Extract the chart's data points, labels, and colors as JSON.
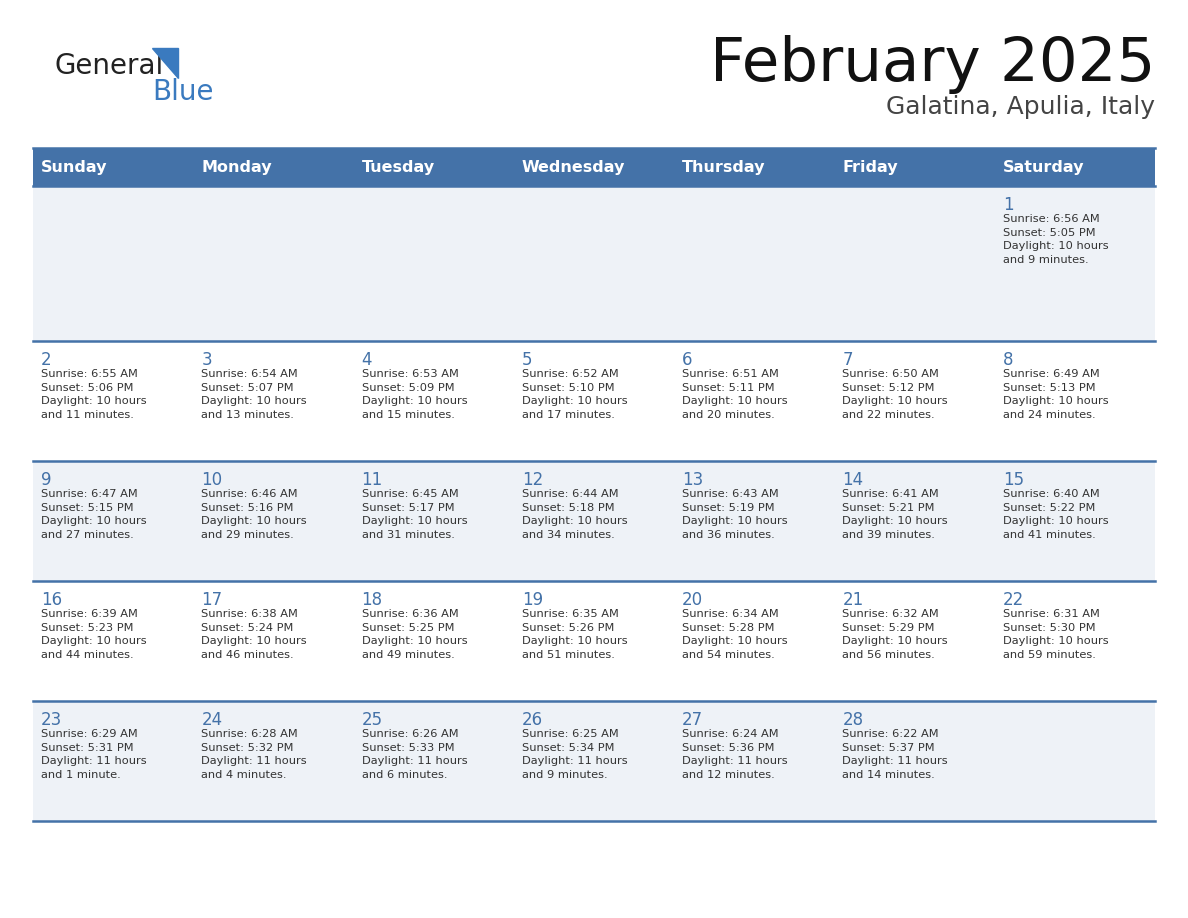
{
  "title": "February 2025",
  "subtitle": "Galatina, Apulia, Italy",
  "header_bg": "#4472A8",
  "header_text": "#FFFFFF",
  "day_names": [
    "Sunday",
    "Monday",
    "Tuesday",
    "Wednesday",
    "Thursday",
    "Friday",
    "Saturday"
  ],
  "row1_bg": "#EEF2F7",
  "row2_bg": "#FFFFFF",
  "border_color": "#4472A8",
  "number_color": "#4472A8",
  "text_color": "#333333",
  "logo_general_color": "#222222",
  "logo_blue_color": "#3A7ABF",
  "logo_triangle_color": "#3A7ABF",
  "calendar": [
    [
      {
        "day": "",
        "info": ""
      },
      {
        "day": "",
        "info": ""
      },
      {
        "day": "",
        "info": ""
      },
      {
        "day": "",
        "info": ""
      },
      {
        "day": "",
        "info": ""
      },
      {
        "day": "",
        "info": ""
      },
      {
        "day": "1",
        "info": "Sunrise: 6:56 AM\nSunset: 5:05 PM\nDaylight: 10 hours\nand 9 minutes."
      }
    ],
    [
      {
        "day": "2",
        "info": "Sunrise: 6:55 AM\nSunset: 5:06 PM\nDaylight: 10 hours\nand 11 minutes."
      },
      {
        "day": "3",
        "info": "Sunrise: 6:54 AM\nSunset: 5:07 PM\nDaylight: 10 hours\nand 13 minutes."
      },
      {
        "day": "4",
        "info": "Sunrise: 6:53 AM\nSunset: 5:09 PM\nDaylight: 10 hours\nand 15 minutes."
      },
      {
        "day": "5",
        "info": "Sunrise: 6:52 AM\nSunset: 5:10 PM\nDaylight: 10 hours\nand 17 minutes."
      },
      {
        "day": "6",
        "info": "Sunrise: 6:51 AM\nSunset: 5:11 PM\nDaylight: 10 hours\nand 20 minutes."
      },
      {
        "day": "7",
        "info": "Sunrise: 6:50 AM\nSunset: 5:12 PM\nDaylight: 10 hours\nand 22 minutes."
      },
      {
        "day": "8",
        "info": "Sunrise: 6:49 AM\nSunset: 5:13 PM\nDaylight: 10 hours\nand 24 minutes."
      }
    ],
    [
      {
        "day": "9",
        "info": "Sunrise: 6:47 AM\nSunset: 5:15 PM\nDaylight: 10 hours\nand 27 minutes."
      },
      {
        "day": "10",
        "info": "Sunrise: 6:46 AM\nSunset: 5:16 PM\nDaylight: 10 hours\nand 29 minutes."
      },
      {
        "day": "11",
        "info": "Sunrise: 6:45 AM\nSunset: 5:17 PM\nDaylight: 10 hours\nand 31 minutes."
      },
      {
        "day": "12",
        "info": "Sunrise: 6:44 AM\nSunset: 5:18 PM\nDaylight: 10 hours\nand 34 minutes."
      },
      {
        "day": "13",
        "info": "Sunrise: 6:43 AM\nSunset: 5:19 PM\nDaylight: 10 hours\nand 36 minutes."
      },
      {
        "day": "14",
        "info": "Sunrise: 6:41 AM\nSunset: 5:21 PM\nDaylight: 10 hours\nand 39 minutes."
      },
      {
        "day": "15",
        "info": "Sunrise: 6:40 AM\nSunset: 5:22 PM\nDaylight: 10 hours\nand 41 minutes."
      }
    ],
    [
      {
        "day": "16",
        "info": "Sunrise: 6:39 AM\nSunset: 5:23 PM\nDaylight: 10 hours\nand 44 minutes."
      },
      {
        "day": "17",
        "info": "Sunrise: 6:38 AM\nSunset: 5:24 PM\nDaylight: 10 hours\nand 46 minutes."
      },
      {
        "day": "18",
        "info": "Sunrise: 6:36 AM\nSunset: 5:25 PM\nDaylight: 10 hours\nand 49 minutes."
      },
      {
        "day": "19",
        "info": "Sunrise: 6:35 AM\nSunset: 5:26 PM\nDaylight: 10 hours\nand 51 minutes."
      },
      {
        "day": "20",
        "info": "Sunrise: 6:34 AM\nSunset: 5:28 PM\nDaylight: 10 hours\nand 54 minutes."
      },
      {
        "day": "21",
        "info": "Sunrise: 6:32 AM\nSunset: 5:29 PM\nDaylight: 10 hours\nand 56 minutes."
      },
      {
        "day": "22",
        "info": "Sunrise: 6:31 AM\nSunset: 5:30 PM\nDaylight: 10 hours\nand 59 minutes."
      }
    ],
    [
      {
        "day": "23",
        "info": "Sunrise: 6:29 AM\nSunset: 5:31 PM\nDaylight: 11 hours\nand 1 minute."
      },
      {
        "day": "24",
        "info": "Sunrise: 6:28 AM\nSunset: 5:32 PM\nDaylight: 11 hours\nand 4 minutes."
      },
      {
        "day": "25",
        "info": "Sunrise: 6:26 AM\nSunset: 5:33 PM\nDaylight: 11 hours\nand 6 minutes."
      },
      {
        "day": "26",
        "info": "Sunrise: 6:25 AM\nSunset: 5:34 PM\nDaylight: 11 hours\nand 9 minutes."
      },
      {
        "day": "27",
        "info": "Sunrise: 6:24 AM\nSunset: 5:36 PM\nDaylight: 11 hours\nand 12 minutes."
      },
      {
        "day": "28",
        "info": "Sunrise: 6:22 AM\nSunset: 5:37 PM\nDaylight: 11 hours\nand 14 minutes."
      },
      {
        "day": "",
        "info": ""
      }
    ]
  ]
}
